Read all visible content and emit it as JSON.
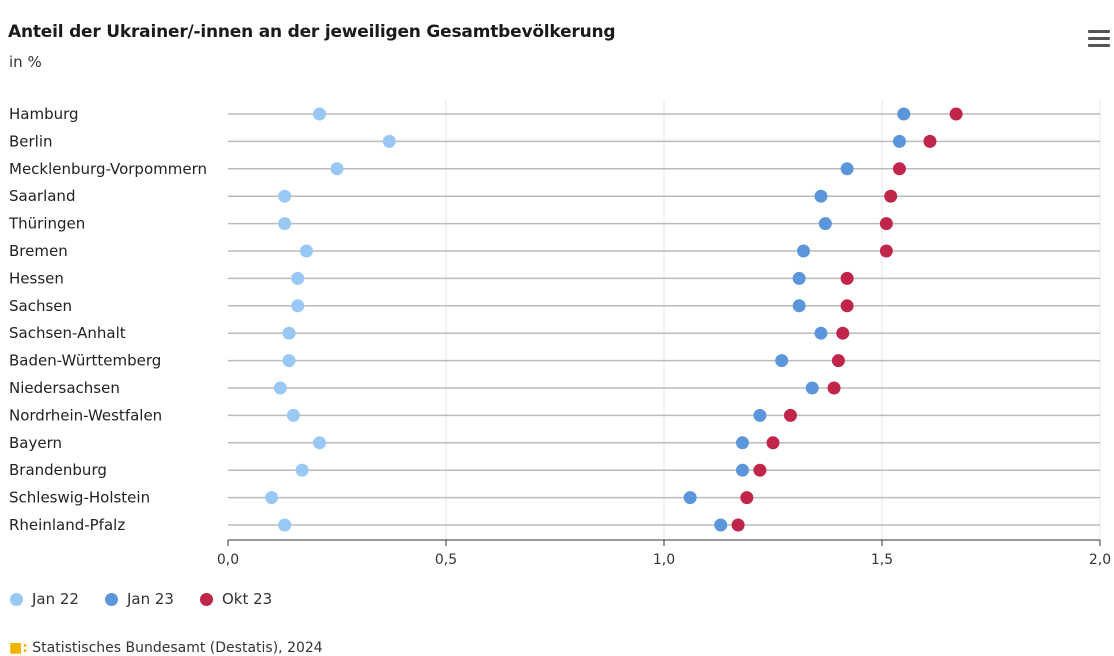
{
  "header": {
    "title": "Anteil der Ukrainer/-innen an der jeweiligen Gesamtbevölkerung",
    "subtitle": "in %",
    "menu_icon": "hamburger-menu-icon"
  },
  "source": {
    "text": "Statistisches Bundesamt (Destatis), 2024"
  },
  "chart_data": {
    "type": "dumbbell",
    "title": "Anteil der Ukrainer/-innen an der jeweiligen Gesamtbevölkerung",
    "subtitle": "in %",
    "categories": [
      "Hamburg",
      "Berlin",
      "Mecklenburg-Vorpommern",
      "Saarland",
      "Thüringen",
      "Bremen",
      "Hessen",
      "Sachsen",
      "Sachsen-Anhalt",
      "Baden-Württemberg",
      "Niedersachsen",
      "Nordrhein-Westfalen",
      "Bayern",
      "Brandenburg",
      "Schleswig-Holstein",
      "Rheinland-Pfalz"
    ],
    "series": [
      {
        "name": "Jan 22",
        "color": "#99c8f5",
        "values": [
          0.21,
          0.37,
          0.25,
          0.13,
          0.13,
          0.18,
          0.16,
          0.16,
          0.14,
          0.14,
          0.12,
          0.15,
          0.21,
          0.17,
          0.1,
          0.13
        ]
      },
      {
        "name": "Jan 23",
        "color": "#5b96db",
        "values": [
          1.55,
          1.54,
          1.42,
          1.36,
          1.37,
          1.32,
          1.31,
          1.31,
          1.36,
          1.27,
          1.34,
          1.22,
          1.18,
          1.18,
          1.06,
          1.13
        ]
      },
      {
        "name": "Okt 23",
        "color": "#c0254a",
        "values": [
          1.67,
          1.61,
          1.54,
          1.52,
          1.51,
          1.51,
          1.42,
          1.42,
          1.41,
          1.4,
          1.39,
          1.29,
          1.25,
          1.22,
          1.19,
          1.17
        ]
      }
    ],
    "x_ticks": [
      "0,0",
      "0,5",
      "1,0",
      "1,5",
      "2,0"
    ],
    "xlim": [
      0,
      2.0
    ],
    "grid": true,
    "legend_position": "bottom-left"
  }
}
